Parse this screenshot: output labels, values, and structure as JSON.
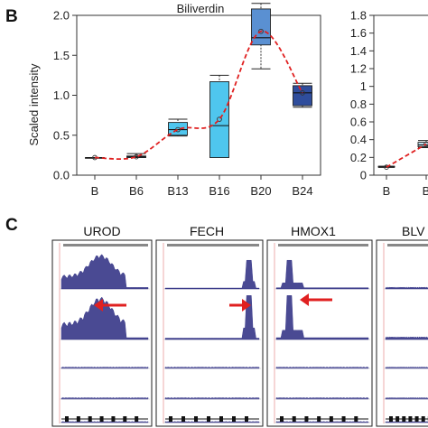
{
  "panel_b": {
    "letter": "B",
    "title": "Biliverdin",
    "ylabel": "Scaled intensity",
    "colors": {
      "light": "#4fc6ee",
      "mid": "#5a90d2",
      "dark": "#2f4d9c",
      "trend": "#e02020"
    }
  },
  "panel_c": {
    "letter": "C",
    "genes": [
      "UROD",
      "FECH",
      "HMOX1",
      "BLV"
    ],
    "arrow_color": "#e02020",
    "track_color": "#2a2a80"
  },
  "chart_data": [
    {
      "type": "box",
      "title": "Biliverdin",
      "xlabel": "",
      "ylabel": "Scaled intensity",
      "ylim": [
        0,
        2
      ],
      "yticks": [
        "0.0",
        "0.5",
        "1.0",
        "1.5",
        "2.0"
      ],
      "categories": [
        "B",
        "B6",
        "B13",
        "B16",
        "B20",
        "B24"
      ],
      "boxes": [
        {
          "min": 0.22,
          "q1": 0.22,
          "median": 0.22,
          "q3": 0.22,
          "max": 0.22,
          "mean": 0.22
        },
        {
          "min": 0.22,
          "q1": 0.22,
          "median": 0.23,
          "q3": 0.24,
          "max": 0.27,
          "mean": 0.23
        },
        {
          "min": 0.49,
          "q1": 0.5,
          "median": 0.57,
          "q3": 0.66,
          "max": 0.7,
          "mean": 0.57
        },
        {
          "min": 0.22,
          "q1": 0.22,
          "median": 0.62,
          "q3": 1.17,
          "max": 1.25,
          "mean": 0.7
        },
        {
          "min": 1.33,
          "q1": 1.63,
          "median": 1.72,
          "q3": 2.08,
          "max": 2.15,
          "mean": 1.8
        },
        {
          "min": 0.85,
          "q1": 0.87,
          "median": 1.03,
          "q3": 1.12,
          "max": 1.15,
          "mean": 1.03
        }
      ],
      "trend_line": "mean",
      "grid": false
    },
    {
      "type": "box",
      "title": "",
      "ylim": [
        0,
        1.8
      ],
      "yticks": [
        "0",
        "0.2",
        "0.4",
        "0.6",
        "0.8",
        "1",
        "1.2",
        "1.4",
        "1.6",
        "1.8"
      ],
      "categories": [
        "B",
        "B"
      ],
      "boxes": [
        {
          "min": 0.09,
          "q1": 0.09,
          "median": 0.09,
          "q3": 0.1,
          "max": 0.1,
          "mean": 0.09
        },
        {
          "min": 0.31,
          "q1": 0.32,
          "median": 0.34,
          "q3": 0.37,
          "max": 0.39,
          "mean": 0.35
        }
      ],
      "trend_line": "mean",
      "grid": false
    }
  ]
}
